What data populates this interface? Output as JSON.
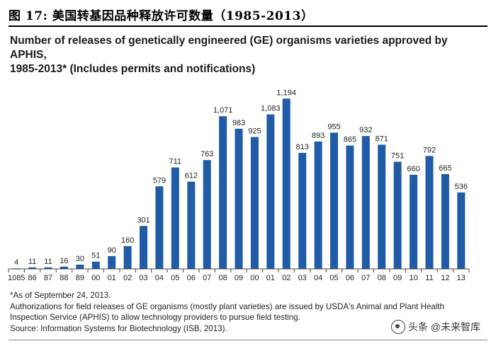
{
  "figure": {
    "label": "图  17:  美国转基因品种释放许可数量（1985-2013）"
  },
  "chart_data": {
    "type": "bar",
    "title_line1": "Number of releases of genetically engineered (GE) organisms varieties approved by APHIS,",
    "title_line2": "1985-2013* (Includes permits and notifications)",
    "categories": [
      "1085",
      "86",
      "87",
      "88",
      "89",
      "00",
      "01",
      "02",
      "03",
      "04",
      "05",
      "06",
      "07",
      "08",
      "09",
      "00",
      "01",
      "02",
      "03",
      "04",
      "05",
      "06",
      "07",
      "08",
      "09",
      "10",
      "11",
      "12",
      "13"
    ],
    "values": [
      4,
      11,
      11,
      16,
      30,
      51,
      90,
      160,
      301,
      579,
      711,
      612,
      763,
      1071,
      983,
      925,
      1083,
      1194,
      813,
      893,
      955,
      865,
      932,
      871,
      751,
      660,
      792,
      665,
      536
    ],
    "data_labels": [
      "4",
      "11",
      "11",
      "16",
      "30",
      "51",
      "90",
      "160",
      "301",
      "579",
      "711",
      "612",
      "763",
      "1,071",
      "983",
      "925",
      "1,083",
      "1,194",
      "813",
      "893",
      "955",
      "865",
      "932",
      "871",
      "751",
      "660",
      "792",
      "665",
      "536"
    ],
    "ylim": [
      0,
      1300
    ],
    "bar_color": "#1f5ba6",
    "grid": false,
    "xlabel": "",
    "ylabel": ""
  },
  "footnotes": {
    "asof": "*As of September 24, 2013.",
    "auth_line1": "Authorizations for field releases of GE organisms (mostly plant varieties) are issued by USDA's Animal and Plant Health",
    "auth_line2": "Inspection Service (APHIS) to allow technology providers to pursue field testing.",
    "source": "Source: Information Systems for Biotechnology (ISB, 2013)."
  },
  "watermark": {
    "text": "头条 @未来智库"
  }
}
